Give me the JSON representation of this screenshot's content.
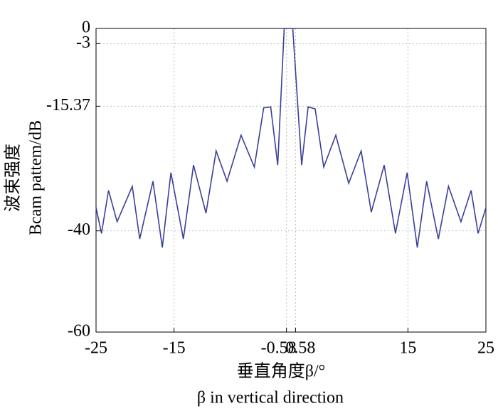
{
  "chart_data": {
    "type": "line",
    "ylabel": [
      "波束强度",
      "Bcam pattem/dB"
    ],
    "xlabel": [
      "垂直角度β/°",
      "β in vertical direction"
    ],
    "x": [
      -25,
      -24.3,
      -23.4,
      -22.3,
      -20.35,
      -19.4,
      -17.7,
      -16.5,
      -15.4,
      -13.8,
      -12.5,
      -10.9,
      -9.6,
      -8.2,
      -6.4,
      -4.7,
      -3.5,
      -2.6,
      -1.7,
      -0.87,
      0.23,
      1.37,
      2.2,
      3.1,
      4.2,
      5.75,
      7.4,
      9.0,
      10.3,
      11.95,
      13.4,
      14.9,
      16.2,
      17.4,
      18.9,
      20.2,
      21.8,
      23.1,
      24.0,
      25
    ],
    "values": [
      -35.4,
      -40.5,
      -32,
      -38.2,
      -31.2,
      -41.6,
      -30.2,
      -43.3,
      -28.5,
      -41.6,
      -27,
      -36.5,
      -24.2,
      -30.2,
      -21.1,
      -27.4,
      -15.7,
      -15.5,
      -27,
      0,
      0,
      -27,
      -15.5,
      -15.9,
      -27.4,
      -21.1,
      -30.6,
      -24.2,
      -36.3,
      -27,
      -40.5,
      -28.5,
      -43.3,
      -30.2,
      -41.6,
      -31.2,
      -38.2,
      -32,
      -40.5,
      -35.4
    ],
    "color": "#3b3f9a",
    "xlim": [
      -25,
      25
    ],
    "xticks": [
      -25,
      -15,
      -0.58,
      0.58,
      15,
      25
    ],
    "ylim": [
      -60,
      0
    ],
    "yticks": [
      0,
      -3,
      -15.37,
      -40,
      -60
    ],
    "grid": true
  }
}
